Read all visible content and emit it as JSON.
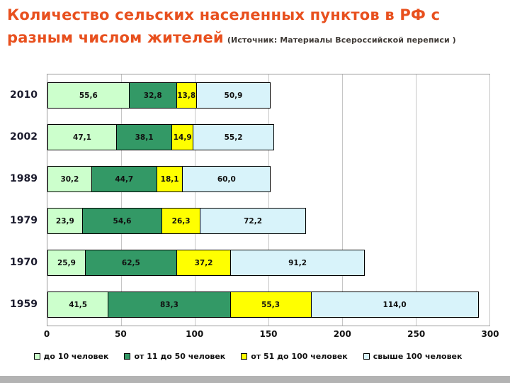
{
  "title": {
    "main": "Количество сельских населенных пунктов в РФ с разным числом жителей",
    "source": "(Источник: Материалы Всероссийской переписи )"
  },
  "chart_data": {
    "type": "bar",
    "orientation": "horizontal",
    "stacked": true,
    "title": "Количество сельских населенных пунктов в РФ с разным числом жителей",
    "categories": [
      "2010",
      "2002",
      "1989",
      "1979",
      "1970",
      "1959"
    ],
    "series": [
      {
        "name": "до 10 человек",
        "color": "#ccffcc",
        "values": [
          55.6,
          47.1,
          30.2,
          23.9,
          25.9,
          41.5
        ]
      },
      {
        "name": "от 11 до 50 человек",
        "color": "#339966",
        "values": [
          32.8,
          38.1,
          44.7,
          54.6,
          62.5,
          83.3
        ]
      },
      {
        "name": "от 51 до 100 человек",
        "color": "#ffff00",
        "values": [
          13.8,
          14.9,
          18.1,
          26.3,
          37.2,
          55.3
        ]
      },
      {
        "name": "свыше 100 человек",
        "color": "#d8f3fa",
        "values": [
          50.9,
          55.2,
          60.0,
          72.2,
          91.2,
          114.0
        ]
      }
    ],
    "xlabel": "",
    "ylabel": "",
    "xlim": [
      0,
      300
    ],
    "xticks": [
      0,
      50,
      100,
      150,
      200,
      250,
      300
    ],
    "grid": true,
    "legend_position": "bottom",
    "decimal_separator": ","
  }
}
